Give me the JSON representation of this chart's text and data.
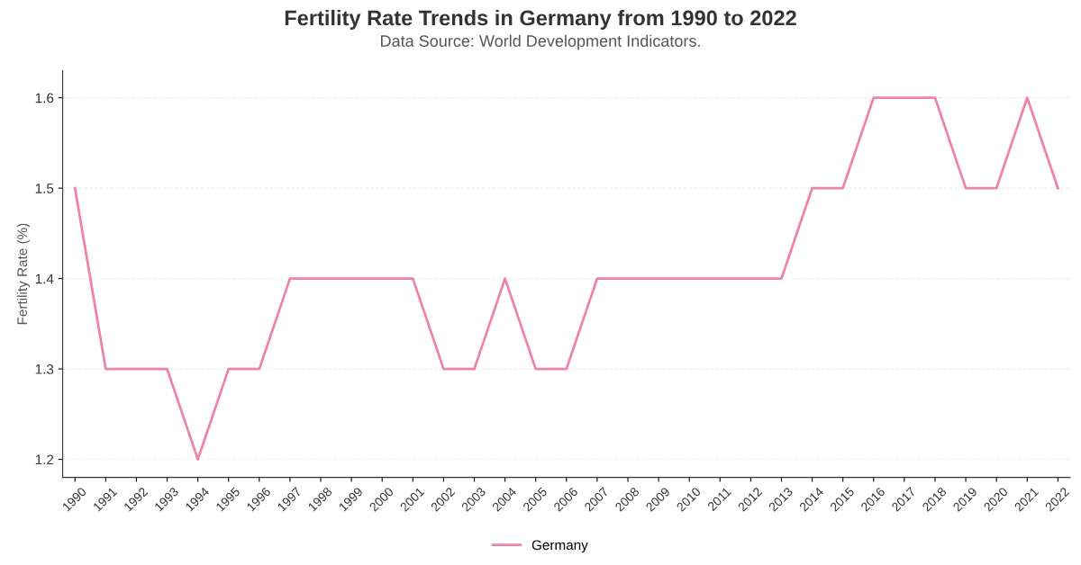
{
  "chart_data": {
    "type": "line",
    "title": "Fertility Rate Trends in Germany from 1990 to 2022",
    "subtitle": "Data Source: World Development Indicators.",
    "ylabel": "Fertility Rate (%)",
    "categories": [
      "1990",
      "1991",
      "1992",
      "1993",
      "1994",
      "1995",
      "1996",
      "1997",
      "1998",
      "1999",
      "2000",
      "2001",
      "2002",
      "2003",
      "2004",
      "2005",
      "2006",
      "2007",
      "2008",
      "2009",
      "2010",
      "2011",
      "2012",
      "2013",
      "2014",
      "2015",
      "2016",
      "2017",
      "2018",
      "2019",
      "2020",
      "2021",
      "2022"
    ],
    "series": [
      {
        "name": "Germany",
        "color": "#ef82a9",
        "values": [
          1.5,
          1.3,
          1.3,
          1.3,
          1.2,
          1.3,
          1.3,
          1.4,
          1.4,
          1.4,
          1.4,
          1.4,
          1.3,
          1.3,
          1.4,
          1.3,
          1.3,
          1.4,
          1.4,
          1.4,
          1.4,
          1.4,
          1.4,
          1.4,
          1.5,
          1.5,
          1.6,
          1.6,
          1.6,
          1.5,
          1.5,
          1.6,
          1.5
        ]
      }
    ],
    "ylim": [
      1.18,
      1.63
    ],
    "yticks": [
      1.2,
      1.3,
      1.4,
      1.5,
      1.6
    ],
    "grid": "y",
    "legend": "bottom",
    "marker": "none",
    "line_style": "solid"
  }
}
